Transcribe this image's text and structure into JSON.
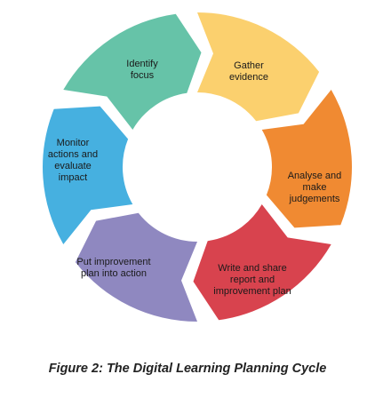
{
  "diagram": {
    "segments": [
      {
        "id": "identify-focus",
        "lines": [
          "Identify",
          "focus"
        ],
        "color": "#66c3a8"
      },
      {
        "id": "gather-evidence",
        "lines": [
          "Gather",
          "evidence"
        ],
        "color": "#fbd06e"
      },
      {
        "id": "analyse-judgements",
        "lines": [
          "Analyse and",
          "make",
          "judgements"
        ],
        "color": "#f08a32"
      },
      {
        "id": "write-share-report",
        "lines": [
          "Write and share",
          "report and",
          "improvement plan"
        ],
        "color": "#d8434e"
      },
      {
        "id": "put-plan-into-action",
        "lines": [
          "Put improvement",
          "plan into action"
        ],
        "color": "#8f88c0"
      },
      {
        "id": "monitor-evaluate",
        "lines": [
          "Monitor",
          "actions and",
          "evaluate",
          "impact"
        ],
        "color": "#46b0e0"
      }
    ]
  },
  "caption": "Figure 2: The Digital Learning Planning Cycle"
}
